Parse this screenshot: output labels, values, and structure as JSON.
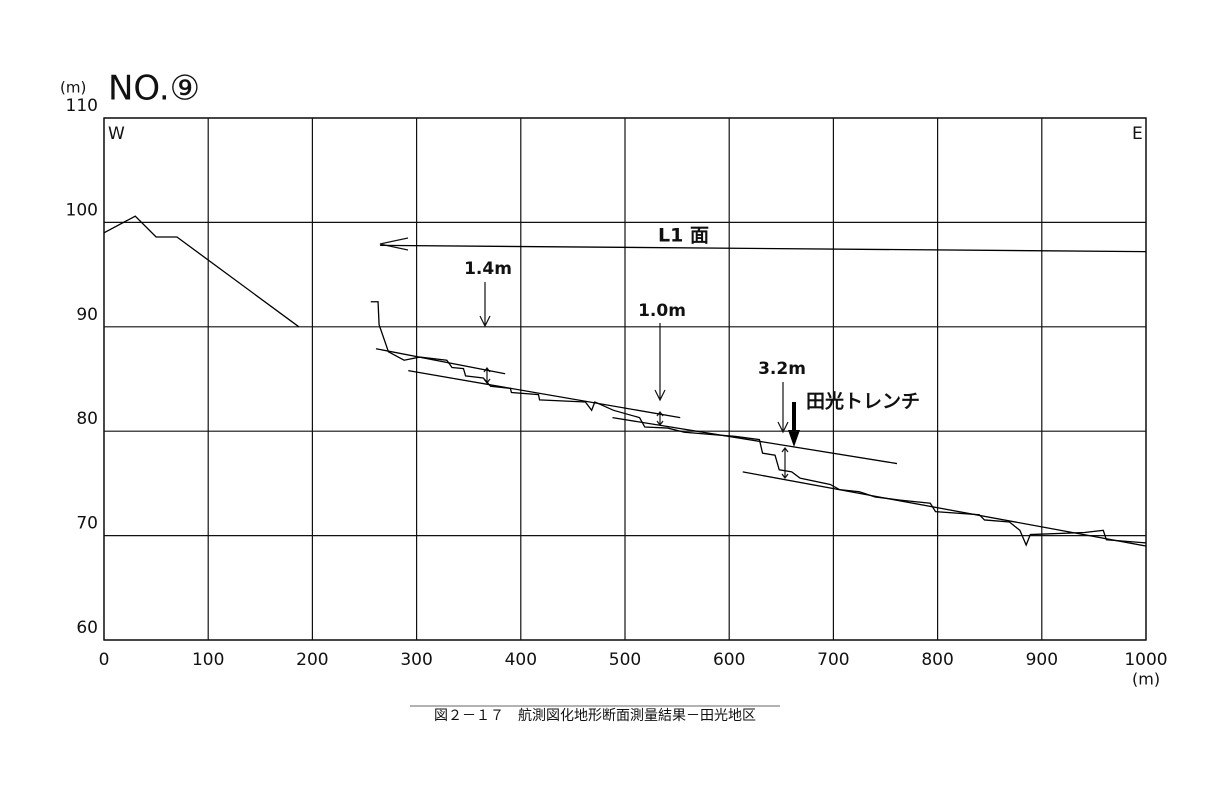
{
  "chart_data": {
    "type": "line",
    "title": "NO.⑨",
    "y_unit_label": "(m)",
    "x_unit_label": "(m)",
    "west_label": "W",
    "east_label": "E",
    "caption": "図２－１７　航測図化地形断面測量結果－田光地区",
    "annotations": [
      "L1 面",
      "1.4m",
      "1.0m",
      "3.2m",
      "田光トレンチ"
    ],
    "xlim": [
      0,
      1000
    ],
    "xticks": [
      0,
      100,
      200,
      300,
      400,
      500,
      600,
      700,
      800,
      900,
      1000
    ],
    "ylim": [
      60,
      110
    ],
    "yticks": [
      60,
      70,
      80,
      90,
      100,
      110
    ],
    "grid": true,
    "series": [
      {
        "color": "#000000",
        "x": [
          0,
          30,
          50,
          70,
          187
        ],
        "values": [
          99,
          100.6,
          98.6,
          98.6,
          90
        ]
      },
      {
        "color": "#000000",
        "x": [
          256,
          263,
          264,
          273,
          288,
          303,
          329,
          334,
          345,
          347,
          364,
          371,
          390,
          391,
          417,
          418,
          462,
          468,
          471,
          489,
          514,
          519,
          541,
          557,
          606,
          629,
          632,
          644,
          648,
          660,
          668,
          697,
          706,
          725,
          740,
          764,
          793,
          798,
          840,
          845,
          869,
          879,
          885,
          889,
          941,
          959,
          962,
          1000
        ],
        "values": [
          92.4,
          92.4,
          90.2,
          87.6,
          86.8,
          87.1,
          86.8,
          86.1,
          86.0,
          85.3,
          85.1,
          84.3,
          84.1,
          83.7,
          83.5,
          83.0,
          82.8,
          82.0,
          82.8,
          82.0,
          81.3,
          80.4,
          80.3,
          79.9,
          79.5,
          79.2,
          77.9,
          77.7,
          76.3,
          76.1,
          75.5,
          74.9,
          74.4,
          74.2,
          73.7,
          73.4,
          73.1,
          72.3,
          72.0,
          71.5,
          71.3,
          70.5,
          69.1,
          70.1,
          70.3,
          70.5,
          69.6,
          69.3
        ]
      },
      {
        "color": "#000000",
        "x": [
          261,
          385
        ],
        "values": [
          87.9,
          85.5
        ]
      },
      {
        "color": "#000000",
        "x": [
          292,
          553
        ],
        "values": [
          85.8,
          81.3
        ]
      },
      {
        "color": "#000000",
        "x": [
          488,
          761
        ],
        "values": [
          81.3,
          76.9
        ]
      },
      {
        "color": "#000000",
        "x": [
          613,
          1000
        ],
        "values": [
          76.1,
          69.0
        ]
      },
      {
        "color": "#000000",
        "x": [
          265,
          1000
        ],
        "values": [
          97.8,
          97.2
        ]
      }
    ]
  }
}
